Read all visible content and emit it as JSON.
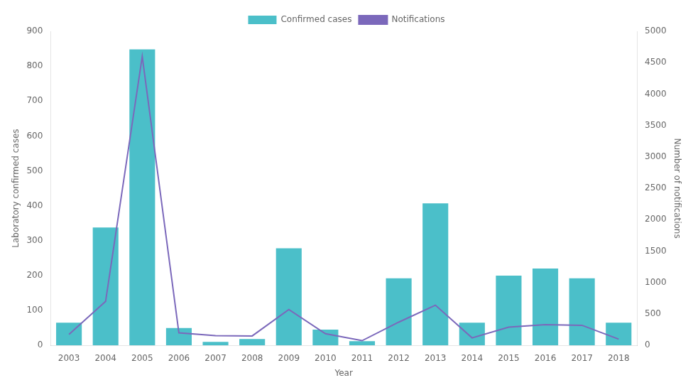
{
  "chart_data": {
    "type": "bar",
    "xlabel": "Year",
    "ylabel": "Laboratory confirmed cases",
    "y2label": "Number of notifications",
    "categories": [
      "2003",
      "2004",
      "2005",
      "2006",
      "2007",
      "2008",
      "2009",
      "2010",
      "2011",
      "2012",
      "2013",
      "2014",
      "2015",
      "2016",
      "2017",
      "2018"
    ],
    "series": [
      {
        "name": "Confirmed cases",
        "type": "bar",
        "color": "#4BBFC9",
        "values": [
          65,
          338,
          848,
          50,
          10,
          18,
          278,
          45,
          12,
          192,
          407,
          65,
          200,
          220,
          192,
          65
        ]
      },
      {
        "name": "Notifications",
        "type": "line",
        "color": "#7B68BB",
        "axis": "y2",
        "values": [
          175,
          700,
          4600,
          200,
          155,
          150,
          570,
          185,
          75,
          370,
          640,
          120,
          290,
          330,
          320,
          100
        ]
      }
    ],
    "ylim": [
      0,
      900
    ],
    "yticks": [
      0,
      100,
      200,
      300,
      400,
      500,
      600,
      700,
      800,
      900
    ],
    "y2lim": [
      0,
      5000
    ],
    "y2ticks": [
      0,
      500,
      1000,
      1500,
      2000,
      2500,
      3000,
      3500,
      4000,
      4500,
      5000
    ],
    "grid": false,
    "legend": "top"
  }
}
